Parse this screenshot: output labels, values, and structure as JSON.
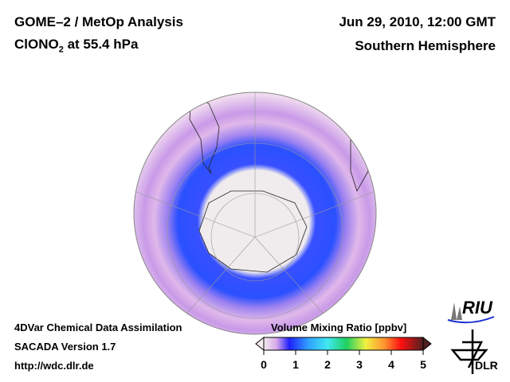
{
  "header": {
    "title": "GOME–2 / MetOp Analysis",
    "species_prefix": "ClONO",
    "species_subscript": "2",
    "species_suffix": " at 55.4 hPa",
    "datetime": "Jun 29, 2010, 12:00 GMT",
    "region": "Southern Hemisphere"
  },
  "footer": {
    "line1": "4DVar Chemical Data Assimilation",
    "line2": "SACADA Version 1.7",
    "line3": "http://wdc.dlr.de"
  },
  "colorbar": {
    "label": "Volume Mixing Ratio [ppbv]",
    "ticks": [
      "0",
      "1",
      "2",
      "3",
      "4",
      "5"
    ],
    "range": [
      0,
      5
    ],
    "colors": [
      "#f2e8ea",
      "#e6b4e8",
      "#3a3aff",
      "#1060ff",
      "#40d8ff",
      "#20e080",
      "#f0f040",
      "#ff9030",
      "#ff1010",
      "#c01010",
      "#502020"
    ]
  },
  "logos": {
    "riu": "RIU",
    "dlr": "DLR"
  }
}
